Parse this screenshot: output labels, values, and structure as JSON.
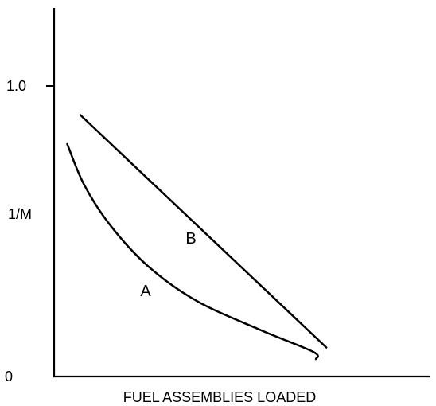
{
  "chart_data": {
    "type": "line",
    "title": "",
    "xlabel": "FUEL ASSEMBLIES LOADED",
    "ylabel": "1/M",
    "y_ticks": [
      {
        "value": 1.0,
        "label": "1.0"
      },
      {
        "value": 0,
        "label": "0"
      }
    ],
    "ylim": [
      0,
      1.0
    ],
    "xlim": [
      0,
      10
    ],
    "grid": false,
    "series": [
      {
        "name": "A",
        "color": "#000000",
        "points": [
          [
            0.35,
            0.8
          ],
          [
            0.8,
            0.66
          ],
          [
            1.5,
            0.52
          ],
          [
            2.5,
            0.38
          ],
          [
            3.8,
            0.26
          ],
          [
            5.5,
            0.16
          ],
          [
            6.9,
            0.085
          ],
          [
            6.97,
            0.06
          ]
        ]
      },
      {
        "name": "B",
        "color": "#000000",
        "points": [
          [
            0.7,
            0.9
          ],
          [
            7.25,
            0.1
          ]
        ]
      }
    ]
  }
}
